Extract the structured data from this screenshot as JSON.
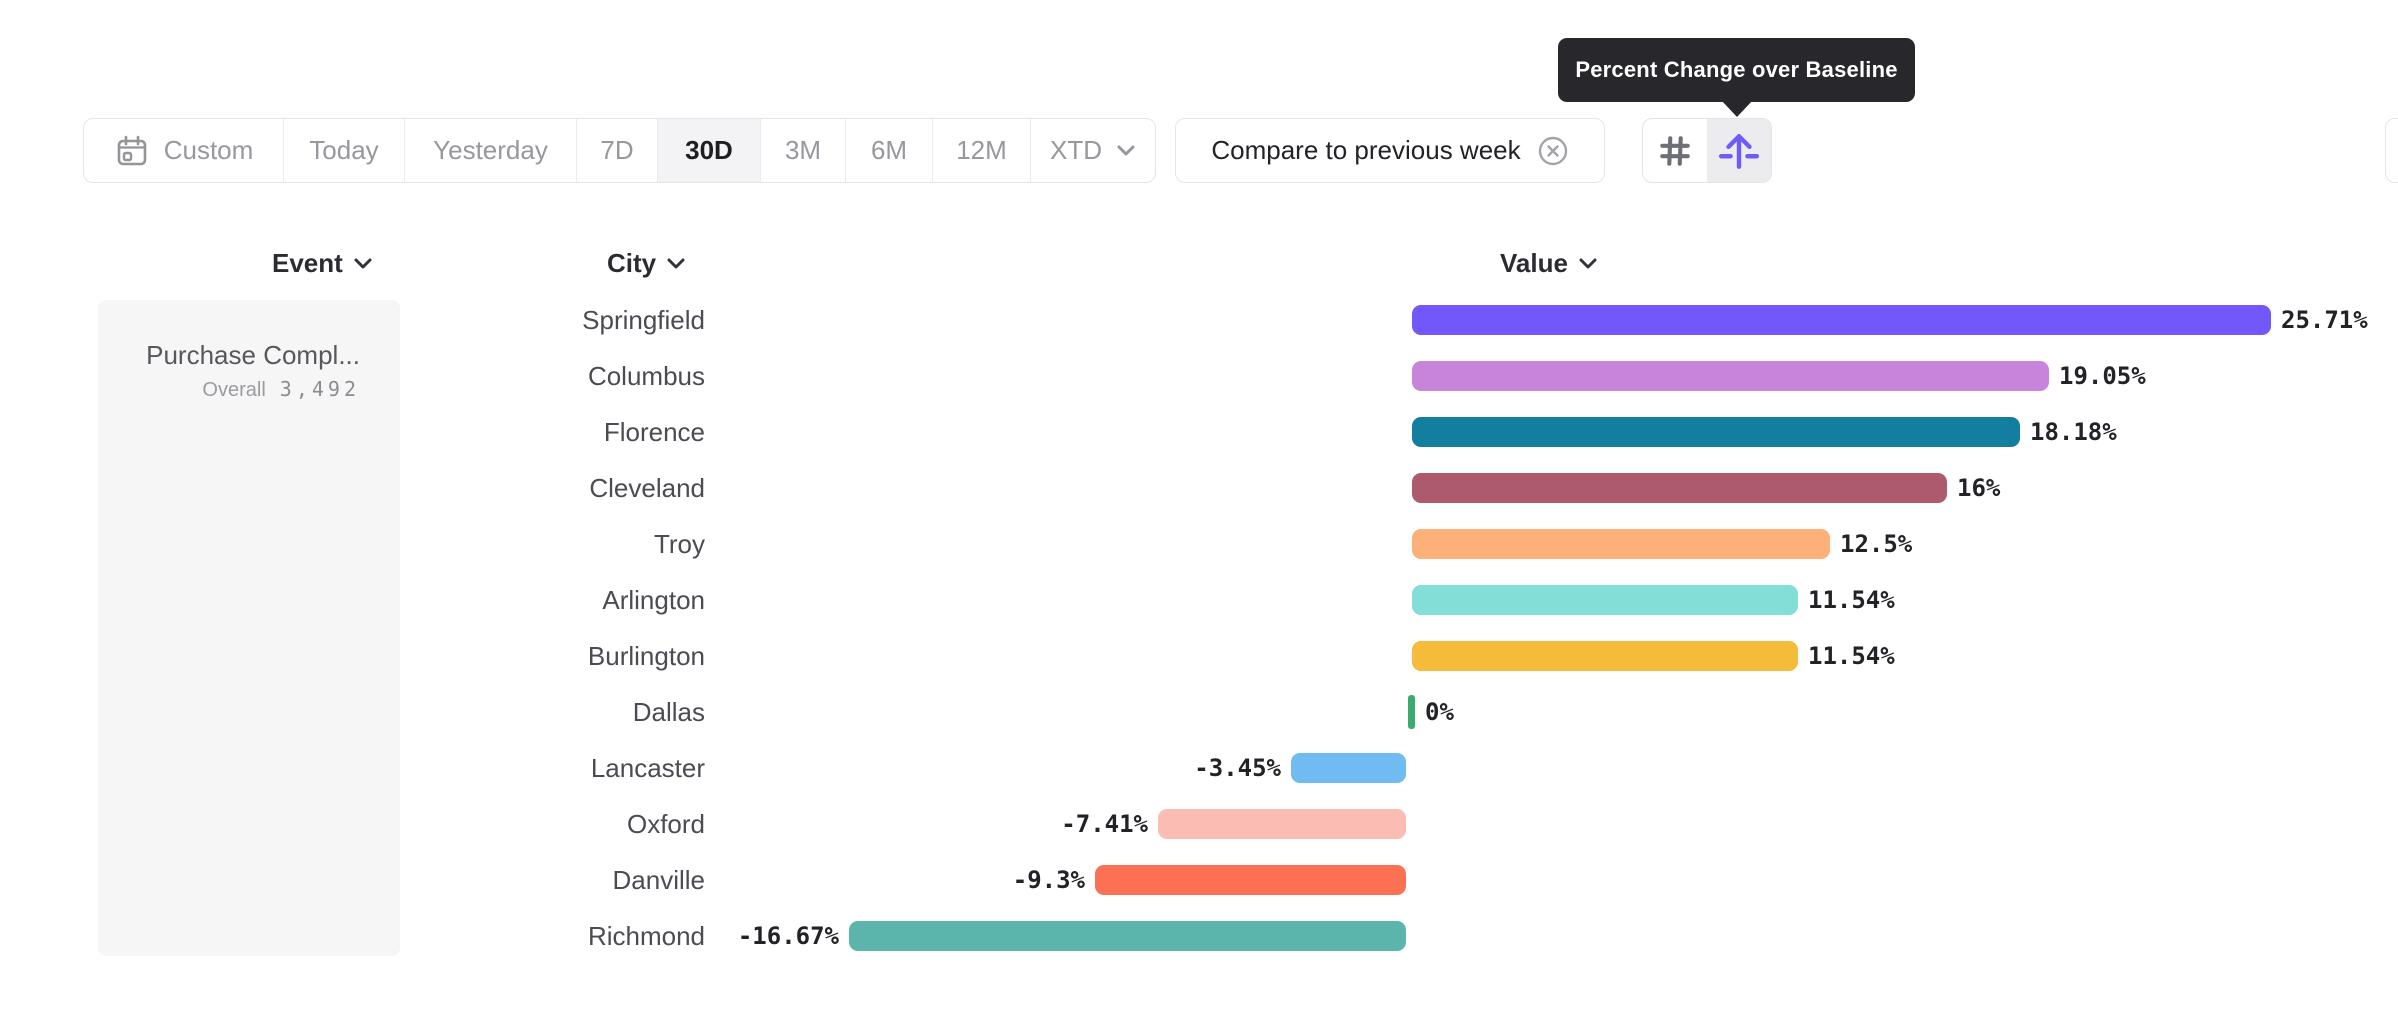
{
  "tooltip": {
    "text": "Percent Change over Baseline"
  },
  "toolbar": {
    "items": [
      {
        "label": "Custom",
        "icon": "calendar-icon",
        "selected": false
      },
      {
        "label": "Today",
        "selected": false
      },
      {
        "label": "Yesterday",
        "selected": false
      },
      {
        "label": "7D",
        "selected": false
      },
      {
        "label": "30D",
        "selected": true
      },
      {
        "label": "3M",
        "selected": false
      },
      {
        "label": "6M",
        "selected": false
      },
      {
        "label": "12M",
        "selected": false
      },
      {
        "label": "XTD",
        "chevron": true,
        "selected": false
      }
    ]
  },
  "compare": {
    "label": "Compare to previous week",
    "close_icon": "circle-x-icon"
  },
  "view_toggle": {
    "options": [
      {
        "icon": "grid-icon",
        "selected": false
      },
      {
        "icon": "baseline-arrow-icon",
        "selected": true
      }
    ],
    "accent_color": "#705bf7"
  },
  "columns": {
    "event": "Event",
    "city": "City",
    "value": "Value"
  },
  "event_panel": {
    "title": "Purchase Compl...",
    "overall_label": "Overall",
    "overall_value": "3,492"
  },
  "chart_data": {
    "type": "bar",
    "orientation": "horizontal",
    "unit": "%",
    "baseline": 0,
    "title": "Percent Change over Baseline",
    "categories": [
      "Springfield",
      "Columbus",
      "Florence",
      "Cleveland",
      "Troy",
      "Arlington",
      "Burlington",
      "Dallas",
      "Lancaster",
      "Oxford",
      "Danville",
      "Richmond"
    ],
    "values": [
      25.71,
      19.05,
      18.18,
      16,
      12.5,
      11.54,
      11.54,
      0,
      -3.45,
      -7.41,
      -9.3,
      -16.67
    ],
    "value_labels": [
      "25.71%",
      "19.05%",
      "18.18%",
      "16%",
      "12.5%",
      "11.54%",
      "11.54%",
      "0%",
      "-3.45%",
      "-7.41%",
      "-9.3%",
      "-16.67%"
    ],
    "colors": [
      "#7257fa",
      "#c884da",
      "#147e9e",
      "#ad5a6f",
      "#fdb077",
      "#83ded8",
      "#f5bc3c",
      "#3aaa6e",
      "#6fbbf2",
      "#fbbcb4",
      "#fc7053",
      "#5bb5ab"
    ]
  }
}
